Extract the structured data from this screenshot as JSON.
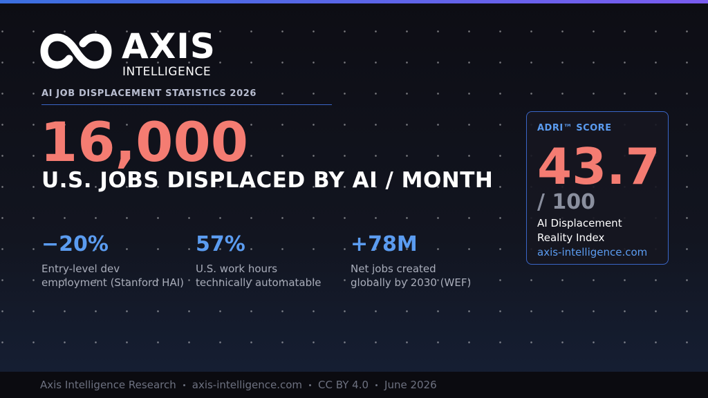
{
  "brand": {
    "name": "AXIS",
    "tagline": "INTELLIGENCE"
  },
  "kicker": "AI JOB DISPLACEMENT STATISTICS 2026",
  "headline": {
    "number": "16,000",
    "text": "U.S. JOBS DISPLACED BY AI / MONTH"
  },
  "stats": [
    {
      "value": "−20%",
      "caption": [
        "Entry-level dev",
        "employment (Stanford HAI)"
      ]
    },
    {
      "value": "57%",
      "caption": [
        "U.S. work hours",
        "technically automatable"
      ]
    },
    {
      "value": "+78M",
      "caption": [
        "Net jobs created",
        "globally by 2030 (WEF)"
      ]
    }
  ],
  "score_card": {
    "label": "ADRI™ SCORE",
    "score": "43.7",
    "scale": "/ 100",
    "description": [
      "AI Displacement",
      "Reality Index"
    ],
    "link": "axis-intelligence.com"
  },
  "footer": [
    "Axis Intelligence Research",
    "axis-intelligence.com",
    "CC BY 4.0",
    "June 2026"
  ]
}
